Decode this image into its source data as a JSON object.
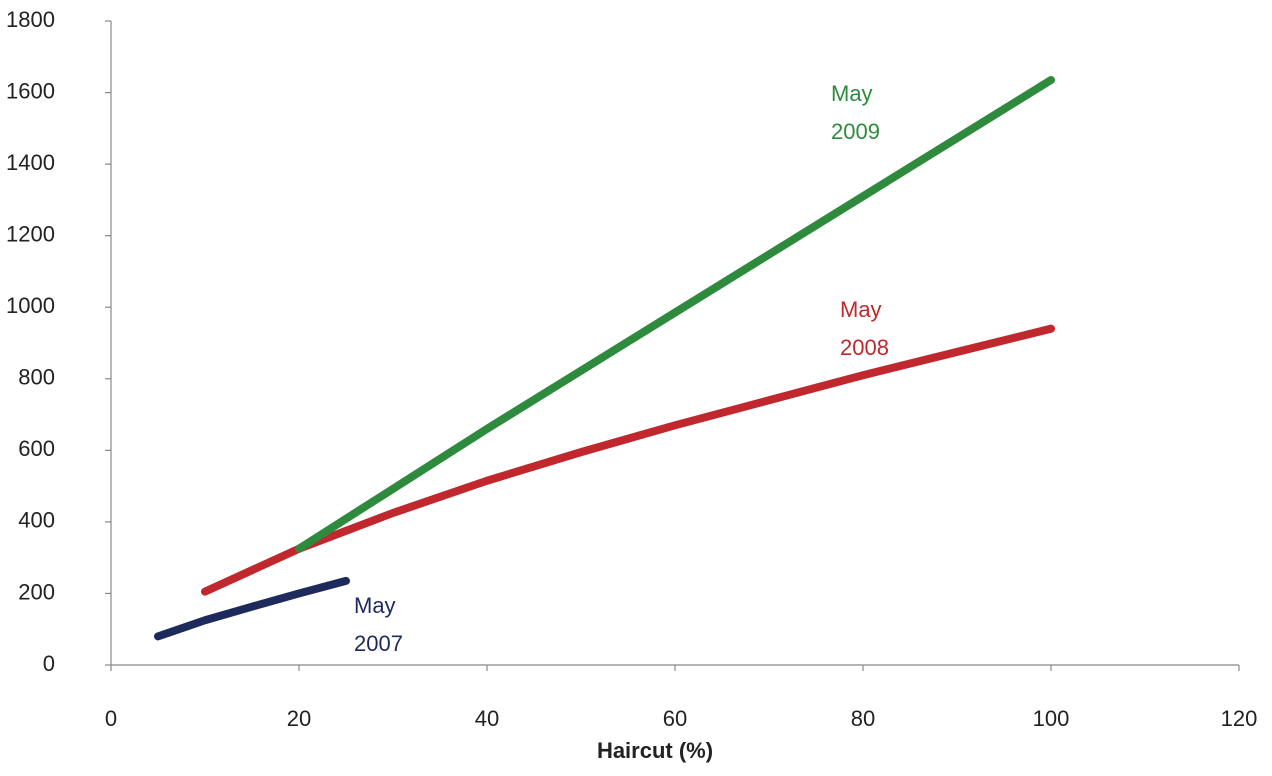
{
  "chart_data": {
    "type": "line",
    "x_label": "Haircut (%)",
    "xlim": [
      0,
      120
    ],
    "xticks": [
      0,
      20,
      40,
      60,
      80,
      100,
      120
    ],
    "ylim": [
      0,
      1800
    ],
    "yticks": [
      0,
      200,
      400,
      600,
      800,
      1000,
      1200,
      1400,
      1600,
      1800
    ],
    "series": [
      {
        "name": "May 2007",
        "label_lines": [
          "May",
          "2007"
        ],
        "color": "#1f2a5c",
        "x": [
          5,
          10,
          15,
          20,
          25
        ],
        "values": [
          80,
          125,
          163,
          200,
          235
        ]
      },
      {
        "name": "May 2008",
        "label_lines": [
          "May",
          "2008"
        ],
        "color": "#c0282d",
        "x": [
          10,
          20,
          30,
          40,
          50,
          60,
          70,
          80,
          90,
          100
        ],
        "values": [
          205,
          325,
          425,
          515,
          595,
          670,
          740,
          810,
          875,
          940
        ]
      },
      {
        "name": "May 2009",
        "label_lines": [
          "May",
          "2009"
        ],
        "color": "#2e8b3e",
        "x": [
          20,
          40,
          60,
          80,
          100
        ],
        "values": [
          325,
          660,
          985,
          1310,
          1635
        ]
      }
    ]
  }
}
